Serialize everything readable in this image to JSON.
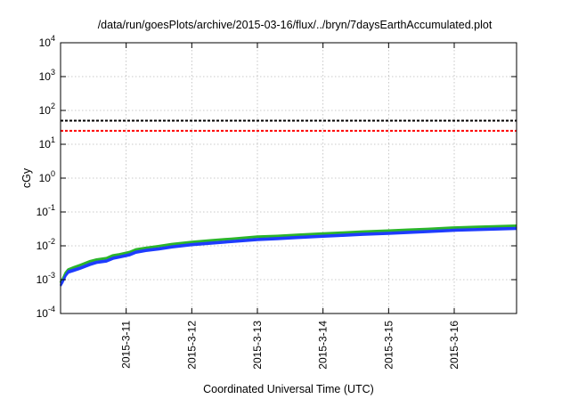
{
  "chart_data": {
    "type": "line",
    "title": "/data/run/goesPlots/archive/2015-03-16/flux/../bryn/7daysEarthAccumulated.plot",
    "xlabel": "Coordinated Universal Time (UTC)",
    "ylabel": "cGy",
    "y_scale": "log",
    "ylim": [
      0.0001,
      10000
    ],
    "xlim": [
      0.0,
      6.95
    ],
    "grid": true,
    "legend": "none",
    "y_ticks": [
      {
        "base": "10",
        "exp": "-4",
        "value": 0.0001
      },
      {
        "base": "10",
        "exp": "-3",
        "value": 0.001
      },
      {
        "base": "10",
        "exp": "-2",
        "value": 0.01
      },
      {
        "base": "10",
        "exp": "-1",
        "value": 0.1
      },
      {
        "base": "10",
        "exp": "0",
        "value": 1
      },
      {
        "base": "10",
        "exp": "1",
        "value": 10
      },
      {
        "base": "10",
        "exp": "2",
        "value": 100
      },
      {
        "base": "10",
        "exp": "3",
        "value": 1000
      },
      {
        "base": "10",
        "exp": "4",
        "value": 10000
      }
    ],
    "x_ticks": [
      {
        "label": "2015-3-11",
        "value": 1
      },
      {
        "label": "2015-3-12",
        "value": 2
      },
      {
        "label": "2015-3-13",
        "value": 3
      },
      {
        "label": "2015-3-14",
        "value": 4
      },
      {
        "label": "2015-3-15",
        "value": 5
      },
      {
        "label": "2015-3-16",
        "value": 6
      }
    ],
    "hlines": [
      {
        "y": 50,
        "color": "#000000",
        "style": "dashed"
      },
      {
        "y": 25,
        "color": "#ff0000",
        "style": "dashed"
      }
    ],
    "series": [
      {
        "color": "#2bb52b",
        "x": [
          0.0,
          0.03,
          0.08,
          0.12,
          0.2,
          0.3,
          0.45,
          0.55,
          0.7,
          0.8,
          0.9,
          1.05,
          1.15,
          1.3,
          1.5,
          1.7,
          2.0,
          2.3,
          2.6,
          3.0,
          3.3,
          3.6,
          4.0,
          4.3,
          4.6,
          5.0,
          5.3,
          5.6,
          6.0,
          6.3,
          6.6,
          6.95
        ],
        "y": [
          0.0008,
          0.001,
          0.0016,
          0.002,
          0.0023,
          0.0027,
          0.0035,
          0.0039,
          0.0043,
          0.0052,
          0.0056,
          0.0065,
          0.0078,
          0.0087,
          0.0098,
          0.0112,
          0.013,
          0.0145,
          0.016,
          0.0185,
          0.0195,
          0.021,
          0.023,
          0.0245,
          0.0262,
          0.028,
          0.0298,
          0.0315,
          0.0345,
          0.036,
          0.0375,
          0.039
        ]
      },
      {
        "color": "#1e3cff",
        "x": [
          0.0,
          0.03,
          0.08,
          0.12,
          0.2,
          0.3,
          0.45,
          0.55,
          0.7,
          0.8,
          0.9,
          1.05,
          1.15,
          1.3,
          1.5,
          1.7,
          2.0,
          2.3,
          2.6,
          3.0,
          3.3,
          3.6,
          4.0,
          4.3,
          4.6,
          5.0,
          5.3,
          5.6,
          6.0,
          6.3,
          6.6,
          6.95
        ],
        "y": [
          0.0007,
          0.0009,
          0.0014,
          0.0018,
          0.002,
          0.0023,
          0.003,
          0.0034,
          0.0037,
          0.0045,
          0.0049,
          0.0057,
          0.0068,
          0.0076,
          0.0085,
          0.0097,
          0.0113,
          0.0126,
          0.0139,
          0.016,
          0.017,
          0.0183,
          0.02,
          0.0213,
          0.0228,
          0.0244,
          0.026,
          0.0274,
          0.03,
          0.0313,
          0.0326,
          0.034
        ]
      },
      {
        "color": "#1e3cff",
        "x": [
          0.0,
          0.03,
          0.08,
          0.12,
          0.2,
          0.3,
          0.45,
          0.55,
          0.7,
          0.8,
          0.9,
          1.05,
          1.15,
          1.3,
          1.5,
          1.7,
          2.0,
          2.3,
          2.6,
          3.0,
          3.3,
          3.6,
          4.0,
          4.3,
          4.6,
          5.0,
          5.3,
          5.6,
          6.0,
          6.3,
          6.6,
          6.95
        ],
        "y": [
          0.00065,
          0.00082,
          0.0013,
          0.0016,
          0.0018,
          0.0021,
          0.0027,
          0.0031,
          0.0034,
          0.0041,
          0.0045,
          0.0052,
          0.0062,
          0.007,
          0.0078,
          0.0089,
          0.0104,
          0.0116,
          0.0128,
          0.0147,
          0.0156,
          0.0168,
          0.0184,
          0.0196,
          0.021,
          0.0224,
          0.0239,
          0.0252,
          0.0276,
          0.0288,
          0.03,
          0.0312
        ]
      }
    ]
  }
}
